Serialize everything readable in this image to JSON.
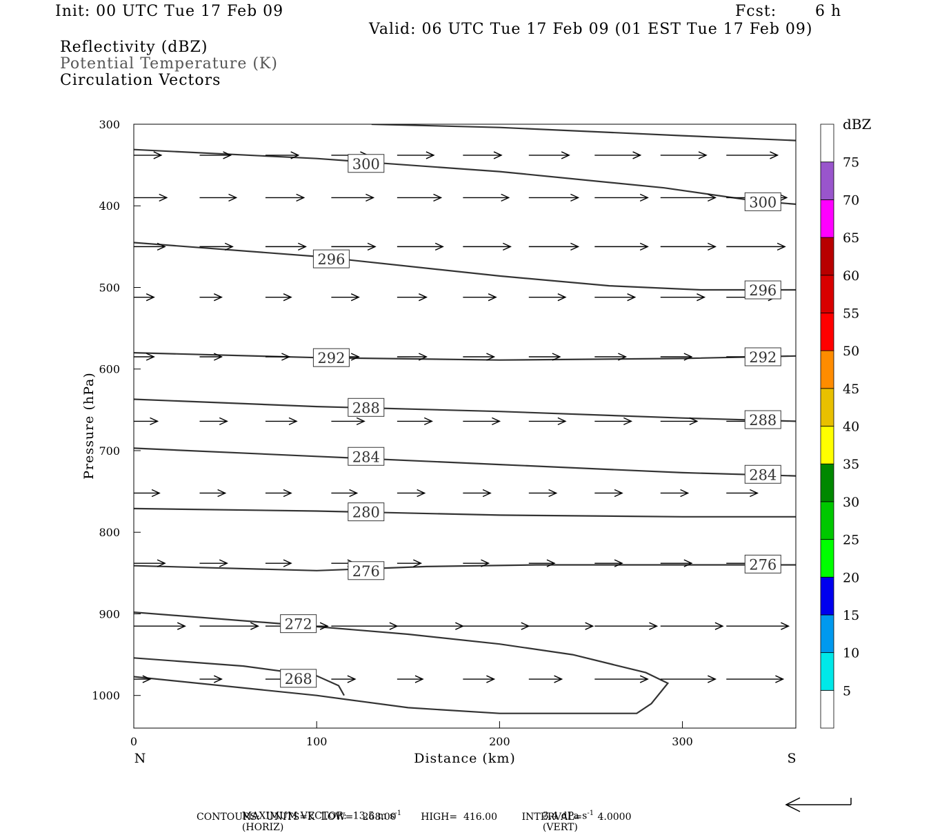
{
  "header": {
    "init": "Init: 00 UTC Tue 17 Feb 09",
    "fcst_label": "Fcst:",
    "fcst_value": "6 h",
    "valid": "Valid: 06 UTC Tue 17 Feb 09 (01 EST Tue 17 Feb 09)",
    "fields": [
      "Reflectivity (dBZ)",
      "Potential Temperature (K)",
      "Circulation Vectors"
    ]
  },
  "chart_data": {
    "type": "line",
    "xlabel": "Distance (km)",
    "ylabel": "Pressure (hPa)",
    "xlim": [
      0,
      362
    ],
    "ylim": [
      1040,
      300
    ],
    "x_ticks": [
      0,
      100,
      200,
      300
    ],
    "y_ticks": [
      300,
      400,
      500,
      600,
      700,
      800,
      900,
      1000
    ],
    "x_end_labels": {
      "left": "N",
      "right": "S"
    },
    "contours": [
      {
        "level": "300",
        "points": [
          [
            130,
            300
          ],
          [
            200,
            304
          ],
          [
            300,
            314
          ],
          [
            362,
            320
          ]
        ]
      },
      {
        "level": "300",
        "points": [
          [
            0,
            331
          ],
          [
            100,
            342
          ],
          [
            200,
            358
          ],
          [
            290,
            378
          ],
          [
            340,
            394
          ],
          [
            362,
            398
          ]
        ]
      },
      {
        "level": "296",
        "points": [
          [
            0,
            445
          ],
          [
            100,
            462
          ],
          [
            200,
            486
          ],
          [
            260,
            498
          ],
          [
            310,
            503
          ],
          [
            362,
            503
          ]
        ]
      },
      {
        "level": "292",
        "points": [
          [
            0,
            580
          ],
          [
            100,
            586
          ],
          [
            200,
            589
          ],
          [
            300,
            587
          ],
          [
            362,
            584
          ]
        ]
      },
      {
        "level": "288",
        "points": [
          [
            0,
            637
          ],
          [
            100,
            646
          ],
          [
            200,
            652
          ],
          [
            300,
            660
          ],
          [
            362,
            664
          ]
        ]
      },
      {
        "level": "284",
        "points": [
          [
            0,
            697
          ],
          [
            100,
            707
          ],
          [
            200,
            717
          ],
          [
            300,
            727
          ],
          [
            362,
            731
          ]
        ]
      },
      {
        "level": "280",
        "points": [
          [
            0,
            771
          ],
          [
            100,
            774
          ],
          [
            200,
            779
          ],
          [
            300,
            781
          ],
          [
            362,
            781
          ]
        ]
      },
      {
        "level": "276",
        "points": [
          [
            0,
            841
          ],
          [
            100,
            847
          ],
          [
            160,
            842
          ],
          [
            220,
            840
          ],
          [
            362,
            840
          ]
        ]
      },
      {
        "level": "272",
        "points": [
          [
            0,
            898
          ],
          [
            80,
            912
          ],
          [
            150,
            925
          ],
          [
            200,
            937
          ],
          [
            240,
            950
          ],
          [
            280,
            972
          ],
          [
            292,
            985
          ],
          [
            283,
            1010
          ],
          [
            275,
            1022
          ],
          [
            200,
            1022
          ],
          [
            150,
            1015
          ],
          [
            100,
            1000
          ],
          [
            0,
            977
          ]
        ]
      },
      {
        "level": "268",
        "points": [
          [
            0,
            954
          ],
          [
            60,
            964
          ],
          [
            100,
            976
          ],
          [
            112,
            988
          ],
          [
            115,
            1000
          ]
        ]
      }
    ],
    "contour_labels": [
      {
        "text": "300",
        "x": 127,
        "p": 348
      },
      {
        "text": "300",
        "x": 344,
        "p": 395
      },
      {
        "text": "296",
        "x": 108,
        "p": 465
      },
      {
        "text": "296",
        "x": 344,
        "p": 503
      },
      {
        "text": "292",
        "x": 108,
        "p": 586
      },
      {
        "text": "292",
        "x": 344,
        "p": 585
      },
      {
        "text": "288",
        "x": 127,
        "p": 647
      },
      {
        "text": "288",
        "x": 344,
        "p": 662
      },
      {
        "text": "284",
        "x": 127,
        "p": 707
      },
      {
        "text": "284",
        "x": 344,
        "p": 729
      },
      {
        "text": "280",
        "x": 127,
        "p": 775
      },
      {
        "text": "276",
        "x": 127,
        "p": 847
      },
      {
        "text": "276",
        "x": 344,
        "p": 839
      },
      {
        "text": "272",
        "x": 90,
        "p": 912
      },
      {
        "text": "268",
        "x": 90,
        "p": 979
      }
    ],
    "vectors": [
      {
        "p": 338,
        "x": [
          0,
          36,
          72,
          108,
          144,
          180,
          216,
          252,
          288,
          324
        ],
        "len": [
          15,
          17,
          18,
          20,
          20,
          21,
          22,
          25,
          25,
          28
        ]
      },
      {
        "p": 390,
        "x": [
          0,
          36,
          72,
          108,
          144,
          180,
          216,
          252,
          288,
          324
        ],
        "len": [
          18,
          20,
          21,
          23,
          24,
          25,
          27,
          29,
          30,
          33
        ]
      },
      {
        "p": 450,
        "x": [
          0,
          36,
          72,
          108,
          144,
          180,
          216,
          252,
          288,
          324
        ],
        "len": [
          17,
          18,
          22,
          24,
          25,
          26,
          27,
          29,
          30,
          32
        ]
      },
      {
        "p": 512,
        "x": [
          0,
          36,
          72,
          108,
          144,
          180,
          216,
          252,
          288,
          324
        ],
        "len": [
          11,
          12,
          14,
          15,
          16,
          18,
          20,
          22,
          24,
          27
        ]
      },
      {
        "p": 585,
        "x": [
          0,
          36,
          72,
          108,
          144,
          180,
          216,
          252,
          288,
          324
        ],
        "len": [
          11,
          12,
          13,
          15,
          16,
          17,
          17,
          17,
          17,
          18
        ]
      },
      {
        "p": 664,
        "x": [
          0,
          36,
          72,
          108,
          144,
          180,
          216,
          252,
          288,
          324
        ],
        "len": [
          13,
          15,
          17,
          18,
          19,
          20,
          20,
          20,
          20,
          20
        ]
      },
      {
        "p": 752,
        "x": [
          0,
          36,
          72,
          108,
          144,
          180,
          216,
          252,
          288,
          324
        ],
        "len": [
          14,
          14,
          14,
          14,
          15,
          15,
          15,
          15,
          15,
          17
        ]
      },
      {
        "p": 838,
        "x": [
          0,
          36,
          72,
          108,
          144,
          180,
          216,
          252,
          288,
          324
        ],
        "len": [
          17,
          15,
          14,
          13,
          13,
          14,
          14,
          15,
          17,
          19
        ]
      },
      {
        "p": 915,
        "x": [
          0,
          36,
          72,
          108,
          144,
          180,
          216,
          252,
          288,
          324
        ],
        "len": [
          28,
          32,
          34,
          36,
          36,
          36,
          35,
          34,
          34,
          34
        ]
      },
      {
        "p": 980,
        "x": [
          0,
          36,
          72,
          108,
          144,
          180,
          216,
          252,
          288,
          324
        ],
        "len": [
          9,
          12,
          14,
          13,
          14,
          17,
          18,
          29,
          30,
          31
        ]
      }
    ],
    "colorbar": {
      "label": "dBZ",
      "levels": [
        5,
        10,
        15,
        20,
        25,
        30,
        35,
        40,
        45,
        50,
        55,
        60,
        65,
        70,
        75
      ],
      "colors": [
        "#ffffff",
        "#00e8e8",
        "#0099ee",
        "#0000ee",
        "#00ff00",
        "#00c800",
        "#008800",
        "#ffff00",
        "#e8c000",
        "#ff8c00",
        "#ff0000",
        "#d80000",
        "#b80000",
        "#ff00ff",
        "#9955cc",
        "#ffffff"
      ]
    }
  },
  "footer": {
    "max_vector": "MAXIMUM VECTOR:  13.5 m s",
    "max_vector_exp": "-1",
    "max_vector_h": "(HORIZ)",
    "vert": "3.4 dPa s",
    "vert_exp": "-1",
    "vert_tail": "(VERT)",
    "contours": "CONTOURS:  UNITS=K  LOW=   268.00        HIGH=  416.00        INTERVAL=     4.0000"
  }
}
